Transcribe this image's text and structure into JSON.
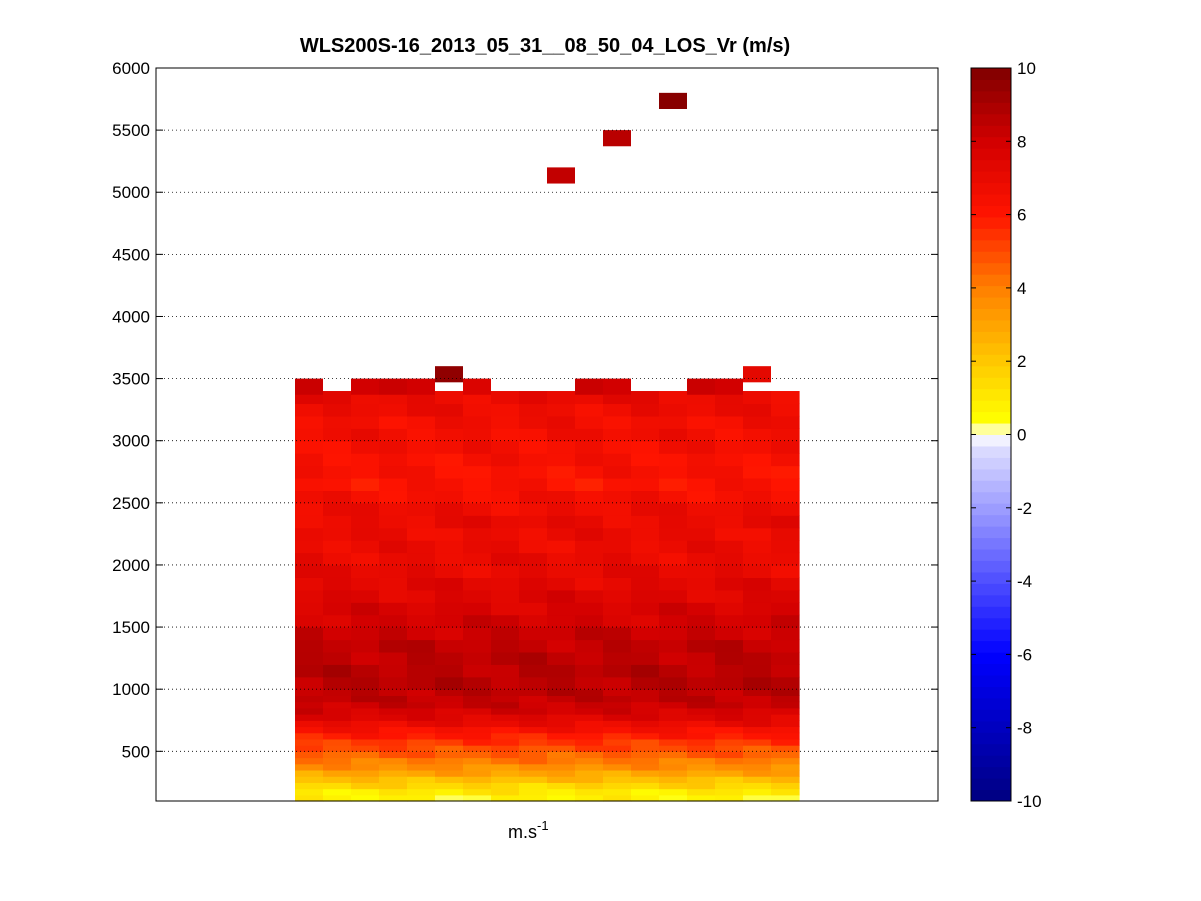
{
  "chart_data": {
    "type": "heatmap",
    "title": "WLS200S-16_2013_05_31__08_50_04_LOS_Vr (m/s)",
    "xlabel": "m.s",
    "xlabel_superscript": "-1",
    "ylabel": "",
    "ylim": [
      100,
      6000
    ],
    "yticks": [
      500,
      1000,
      1500,
      2000,
      2500,
      3000,
      3500,
      4000,
      4500,
      5000,
      5500,
      6000
    ],
    "grid": "horizontal-dotted",
    "colorbar": {
      "range": [
        -10,
        10
      ],
      "ticks": [
        -10,
        -8,
        -6,
        -4,
        -2,
        0,
        2,
        4,
        6,
        8,
        10
      ],
      "colormap": "blue-white-yellow-red-darkred",
      "placement": "right"
    },
    "columns": 18,
    "altitude_profile": [
      {
        "alt": 100,
        "v": 0.7
      },
      {
        "alt": 150,
        "v": 1.0
      },
      {
        "alt": 200,
        "v": 1.6
      },
      {
        "alt": 250,
        "v": 2.3
      },
      {
        "alt": 300,
        "v": 3.0
      },
      {
        "alt": 350,
        "v": 3.6
      },
      {
        "alt": 400,
        "v": 4.1
      },
      {
        "alt": 450,
        "v": 4.6
      },
      {
        "alt": 500,
        "v": 5.0
      },
      {
        "alt": 550,
        "v": 5.4
      },
      {
        "alt": 600,
        "v": 5.9
      },
      {
        "alt": 650,
        "v": 6.4
      },
      {
        "alt": 700,
        "v": 7.0
      },
      {
        "alt": 750,
        "v": 7.5
      },
      {
        "alt": 800,
        "v": 7.9
      },
      {
        "alt": 850,
        "v": 8.2
      },
      {
        "alt": 900,
        "v": 8.4
      },
      {
        "alt": 950,
        "v": 8.5
      },
      {
        "alt": 1000,
        "v": 8.6
      },
      {
        "alt": 1100,
        "v": 8.6
      },
      {
        "alt": 1200,
        "v": 8.5
      },
      {
        "alt": 1300,
        "v": 8.4
      },
      {
        "alt": 1400,
        "v": 8.2
      },
      {
        "alt": 1500,
        "v": 7.9
      },
      {
        "alt": 1600,
        "v": 7.7
      },
      {
        "alt": 1700,
        "v": 7.5
      },
      {
        "alt": 1800,
        "v": 7.3
      },
      {
        "alt": 1900,
        "v": 7.1
      },
      {
        "alt": 2000,
        "v": 7.0
      },
      {
        "alt": 2100,
        "v": 6.9
      },
      {
        "alt": 2200,
        "v": 6.9
      },
      {
        "alt": 2300,
        "v": 7.0
      },
      {
        "alt": 2400,
        "v": 6.8
      },
      {
        "alt": 2500,
        "v": 6.5
      },
      {
        "alt": 2600,
        "v": 6.2
      },
      {
        "alt": 2700,
        "v": 6.3
      },
      {
        "alt": 2800,
        "v": 6.4
      },
      {
        "alt": 2900,
        "v": 6.5
      },
      {
        "alt": 3000,
        "v": 6.6
      },
      {
        "alt": 3100,
        "v": 6.6
      },
      {
        "alt": 3200,
        "v": 6.8
      },
      {
        "alt": 3300,
        "v": 7.0
      },
      {
        "alt": 3400,
        "v": 7.4
      }
    ],
    "top_cells": [
      {
        "col": 0,
        "alt": 3450,
        "v": 8.2
      },
      {
        "col": 2,
        "alt": 3450,
        "v": 8.0
      },
      {
        "col": 3,
        "alt": 3450,
        "v": 8.2
      },
      {
        "col": 4,
        "alt": 3450,
        "v": 8.0
      },
      {
        "col": 5,
        "alt": 3550,
        "v": 9.6
      },
      {
        "col": 6,
        "alt": 3450,
        "v": 7.6
      },
      {
        "col": 10,
        "alt": 3450,
        "v": 8.2
      },
      {
        "col": 11,
        "alt": 3450,
        "v": 8.0
      },
      {
        "col": 14,
        "alt": 3450,
        "v": 8.2
      },
      {
        "col": 15,
        "alt": 3450,
        "v": 8.0
      },
      {
        "col": 16,
        "alt": 3550,
        "v": 7.2
      }
    ],
    "outliers": [
      {
        "col": 9,
        "alt": 5150,
        "v": 8.4
      },
      {
        "col": 11,
        "alt": 5450,
        "v": 8.6
      },
      {
        "col": 13,
        "alt": 5750,
        "v": 9.8
      }
    ]
  }
}
